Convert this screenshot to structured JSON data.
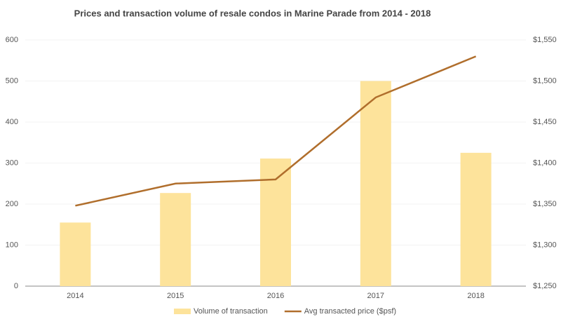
{
  "chart_data": {
    "type": "bar",
    "title": "Prices and transaction  volume of resale condos  in Marine Parade from 2014 - 2018",
    "categories": [
      "2014",
      "2015",
      "2016",
      "2017",
      "2018"
    ],
    "series": [
      {
        "name": "Volume of transaction",
        "type": "bar",
        "color": "#fde39b",
        "values": [
          155,
          227,
          311,
          500,
          325
        ]
      },
      {
        "name": "Avg transacted price ($psf)",
        "type": "line",
        "axis": "y2",
        "color": "#b06e2c",
        "values": [
          1348,
          1375,
          1380,
          1480,
          1530
        ]
      }
    ],
    "ylim": [
      0,
      600
    ],
    "yticks": [
      0,
      100,
      200,
      300,
      400,
      500,
      600
    ],
    "y2lim": [
      1250,
      1550
    ],
    "y2ticks": [
      {
        "value": 1250,
        "label": "$1,250"
      },
      {
        "value": 1300,
        "label": "$1,300"
      },
      {
        "value": 1350,
        "label": "$1,350"
      },
      {
        "value": 1400,
        "label": "$1,400"
      },
      {
        "value": 1450,
        "label": "$1,450"
      },
      {
        "value": 1500,
        "label": "$1,500"
      },
      {
        "value": 1550,
        "label": "$1,550"
      }
    ],
    "grid": true
  }
}
